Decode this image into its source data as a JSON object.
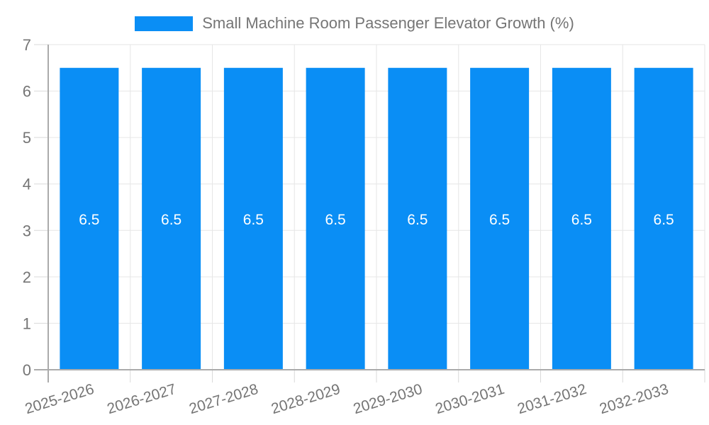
{
  "legend": {
    "label": "Small Machine Room Passenger Elevator Growth (%)",
    "swatch_color": "#0a8ef5"
  },
  "chart_data": {
    "type": "bar",
    "title": "Small Machine Room Passenger Elevator Growth (%)",
    "categories": [
      "2025-2026",
      "2026-2027",
      "2027-2028",
      "2028-2029",
      "2029-2030",
      "2030-2031",
      "2031-2032",
      "2032-2033"
    ],
    "series": [
      {
        "name": "Small Machine Room Passenger Elevator Growth (%)",
        "values": [
          6.5,
          6.5,
          6.5,
          6.5,
          6.5,
          6.5,
          6.5,
          6.5
        ]
      }
    ],
    "value_labels": [
      "6.5",
      "6.5",
      "6.5",
      "6.5",
      "6.5",
      "6.5",
      "6.5",
      "6.5"
    ],
    "xlabel": "",
    "ylabel": "",
    "ylim": [
      0,
      7
    ],
    "yticks": [
      0,
      1,
      2,
      3,
      4,
      5,
      6,
      7
    ],
    "grid": true,
    "legend_position": "top",
    "bar_color": "#0a8ef5",
    "value_label_color": "#ffffff"
  },
  "colors": {
    "text": "#757575",
    "grid": "#e6e6e6",
    "tick": "#d9d9d9",
    "axis": "#ababab"
  }
}
